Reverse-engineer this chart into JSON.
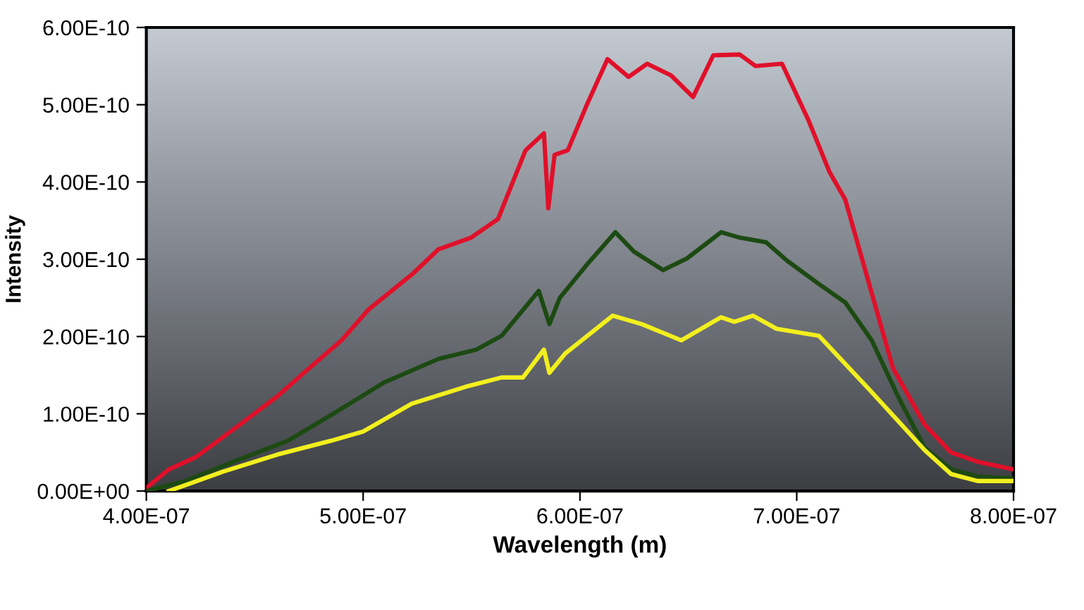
{
  "chart_data": {
    "type": "line",
    "xlabel": "Wavelength (m)",
    "ylabel": "Intensity",
    "xlim": [
      4e-07,
      8e-07
    ],
    "ylim": [
      0,
      6e-10
    ],
    "xticks": [
      {
        "value": 4e-07,
        "label": "4.00E-07"
      },
      {
        "value": 5e-07,
        "label": "5.00E-07"
      },
      {
        "value": 6e-07,
        "label": "6.00E-07"
      },
      {
        "value": 7e-07,
        "label": "7.00E-07"
      },
      {
        "value": 8e-07,
        "label": "8.00E-07"
      }
    ],
    "yticks": [
      {
        "value": 0,
        "label": "0.00E+00"
      },
      {
        "value": 1e-10,
        "label": "1.00E-10"
      },
      {
        "value": 2e-10,
        "label": "2.00E-10"
      },
      {
        "value": 3e-10,
        "label": "3.00E-10"
      },
      {
        "value": 4e-10,
        "label": "4.00E-10"
      },
      {
        "value": 5e-10,
        "label": "5.00E-10"
      },
      {
        "value": 6e-10,
        "label": "6.00E-10"
      }
    ],
    "series": [
      {
        "color": "#e0102a",
        "x": [
          4e-07,
          4.104e-07,
          4.229e-07,
          4.403e-07,
          4.602e-07,
          4.751e-07,
          4.9e-07,
          5.025e-07,
          5.224e-07,
          5.348e-07,
          5.498e-07,
          5.622e-07,
          5.749e-07,
          5.834e-07,
          5.854e-07,
          5.883e-07,
          5.944e-07,
          6.029e-07,
          6.127e-07,
          6.224e-07,
          6.31e-07,
          6.42e-07,
          6.522e-07,
          6.615e-07,
          6.737e-07,
          6.81e-07,
          6.932e-07,
          7.054e-07,
          7.151e-07,
          7.224e-07,
          7.346e-07,
          7.444e-07,
          7.59e-07,
          7.712e-07,
          7.834e-07,
          8e-07
        ],
        "values": [
          4e-12,
          2.8e-11,
          4.4e-11,
          8e-11,
          1.22e-10,
          1.59e-10,
          1.95e-10,
          2.35e-10,
          2.8e-10,
          3.13e-10,
          3.28e-10,
          3.52e-10,
          4.41e-10,
          4.63e-10,
          3.66e-10,
          4.35e-10,
          4.41e-10,
          4.98e-10,
          5.59e-10,
          5.36e-10,
          5.53e-10,
          5.38e-10,
          5.1e-10,
          5.64e-10,
          5.65e-10,
          5.5e-10,
          5.53e-10,
          4.8e-10,
          4.13e-10,
          3.77e-10,
          2.56e-10,
          1.59e-10,
          8.6e-11,
          5e-11,
          3.8e-11,
          2.8e-11
        ]
      },
      {
        "color": "#1c4a12",
        "x": [
          4e-07,
          4.179e-07,
          4.403e-07,
          4.652e-07,
          4.85e-07,
          5.1e-07,
          5.348e-07,
          5.522e-07,
          5.639e-07,
          5.81e-07,
          5.859e-07,
          5.907e-07,
          6.029e-07,
          6.163e-07,
          6.249e-07,
          6.383e-07,
          6.493e-07,
          6.651e-07,
          6.737e-07,
          6.859e-07,
          6.956e-07,
          7.102e-07,
          7.224e-07,
          7.346e-07,
          7.468e-07,
          7.59e-07,
          7.712e-07,
          7.834e-07,
          8e-07
        ],
        "values": [
          0,
          1.3e-11,
          3.8e-11,
          6.5e-11,
          9.8e-11,
          1.41e-10,
          1.71e-10,
          1.83e-10,
          2.01e-10,
          2.59e-10,
          2.16e-10,
          2.5e-10,
          2.92e-10,
          3.35e-10,
          3.1e-10,
          2.86e-10,
          3.01e-10,
          3.35e-10,
          3.28e-10,
          3.22e-10,
          2.98e-10,
          2.68e-10,
          2.44e-10,
          1.95e-10,
          1.22e-10,
          5.6e-11,
          2.8e-11,
          1.9e-11,
          1.6e-11
        ]
      },
      {
        "color": "#f2ef1e",
        "x": [
          4.104e-07,
          4.353e-07,
          4.602e-07,
          4.851e-07,
          5e-07,
          5.224e-07,
          5.473e-07,
          5.639e-07,
          5.737e-07,
          5.834e-07,
          5.859e-07,
          5.932e-07,
          6.151e-07,
          6.285e-07,
          6.468e-07,
          6.651e-07,
          6.712e-07,
          6.798e-07,
          6.907e-07,
          7.102e-07,
          7.346e-07,
          7.59e-07,
          7.712e-07,
          7.834e-07,
          8e-07
        ],
        "values": [
          0,
          2.5e-11,
          4.7e-11,
          6.5e-11,
          7.7e-11,
          1.13e-10,
          1.35e-10,
          1.47e-10,
          1.47e-10,
          1.83e-10,
          1.53e-10,
          1.78e-10,
          2.27e-10,
          2.16e-10,
          1.95e-10,
          2.25e-10,
          2.19e-10,
          2.27e-10,
          2.1e-10,
          2.01e-10,
          1.28e-10,
          5.3e-11,
          2.2e-11,
          1.3e-11,
          1.3e-11
        ]
      }
    ]
  }
}
